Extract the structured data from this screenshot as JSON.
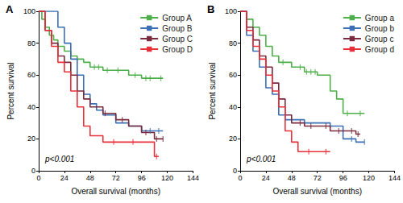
{
  "chart_data": [
    {
      "type": "line",
      "title": "A",
      "x_label": "Overall survival (months)",
      "y_label": "Percent survival",
      "annotation": "p<0.001",
      "xlim": [
        0,
        144
      ],
      "xticks": [
        0,
        24,
        48,
        72,
        96,
        120,
        144
      ],
      "ylim": [
        0,
        100
      ],
      "yticks": [
        0,
        20,
        40,
        60,
        80,
        100
      ],
      "grid": false,
      "legend": "upper right",
      "line_style": "step",
      "marker": "tick",
      "series": [
        {
          "name": "Group A",
          "color": "#4daf4a",
          "x": [
            0,
            3,
            6,
            10,
            14,
            18,
            24,
            30,
            36,
            42,
            48,
            60,
            84,
            96,
            116
          ],
          "values": [
            100,
            95,
            90,
            85,
            82,
            78,
            75,
            72,
            70,
            68,
            65,
            63,
            60,
            58,
            58
          ],
          "censored": [
            [
              52,
              65
            ],
            [
              56,
              65
            ],
            [
              64,
              63
            ],
            [
              74,
              63
            ],
            [
              90,
              60
            ],
            [
              100,
              58
            ],
            [
              104,
              58
            ],
            [
              114,
              58
            ]
          ]
        },
        {
          "name": "Group B",
          "color": "#3b6fb6",
          "x": [
            0,
            18,
            24,
            30,
            36,
            42,
            48,
            54,
            60,
            72,
            84,
            96,
            116
          ],
          "values": [
            100,
            90,
            80,
            70,
            60,
            48,
            42,
            38,
            35,
            30,
            28,
            25,
            25
          ],
          "censored": [
            [
              104,
              25
            ],
            [
              112,
              25
            ]
          ]
        },
        {
          "name": "Group C",
          "color": "#7a2a3c",
          "x": [
            0,
            6,
            12,
            18,
            24,
            30,
            36,
            42,
            48,
            60,
            72,
            84,
            96,
            108,
            116
          ],
          "values": [
            100,
            88,
            80,
            72,
            68,
            60,
            50,
            45,
            40,
            36,
            32,
            28,
            24,
            20,
            20
          ],
          "censored": [
            [
              62,
              36
            ],
            [
              78,
              32
            ],
            [
              100,
              24
            ],
            [
              110,
              20
            ],
            [
              116,
              20
            ]
          ]
        },
        {
          "name": "Group D",
          "color": "#e8303a",
          "x": [
            0,
            6,
            12,
            18,
            24,
            30,
            36,
            42,
            48,
            60,
            108,
            112
          ],
          "values": [
            100,
            88,
            78,
            68,
            62,
            50,
            40,
            28,
            22,
            18,
            9,
            9
          ],
          "censored": [
            [
              70,
              18
            ],
            [
              88,
              18
            ],
            [
              110,
              9
            ]
          ]
        }
      ]
    },
    {
      "type": "line",
      "title": "B",
      "x_label": "Overall survival (months)",
      "y_label": "Percent survival",
      "annotation": "p<0.001",
      "xlim": [
        0,
        144
      ],
      "xticks": [
        0,
        24,
        48,
        72,
        96,
        120,
        144
      ],
      "ylim": [
        0,
        100
      ],
      "yticks": [
        0,
        20,
        40,
        60,
        80,
        100
      ],
      "grid": false,
      "legend": "upper right",
      "line_style": "step",
      "marker": "tick",
      "series": [
        {
          "name": "Group a",
          "color": "#4daf4a",
          "x": [
            0,
            6,
            12,
            18,
            24,
            30,
            36,
            48,
            60,
            72,
            84,
            90,
            96,
            116
          ],
          "values": [
            100,
            95,
            90,
            85,
            78,
            72,
            68,
            65,
            62,
            60,
            50,
            45,
            36,
            36
          ],
          "censored": [
            [
              40,
              68
            ],
            [
              56,
              65
            ],
            [
              62,
              62
            ],
            [
              66,
              62
            ],
            [
              70,
              62
            ],
            [
              100,
              36
            ],
            [
              112,
              36
            ]
          ]
        },
        {
          "name": "Group b",
          "color": "#3b6fb6",
          "x": [
            0,
            6,
            12,
            18,
            24,
            30,
            36,
            42,
            60,
            84,
            96,
            108,
            116
          ],
          "values": [
            100,
            85,
            75,
            65,
            52,
            48,
            35,
            32,
            30,
            28,
            20,
            18,
            18
          ],
          "censored": [
            [
              104,
              20
            ],
            [
              116,
              18
            ]
          ]
        },
        {
          "name": "Group c",
          "color": "#7a2a3c",
          "x": [
            0,
            6,
            12,
            18,
            24,
            30,
            36,
            42,
            48,
            60,
            84,
            108,
            112
          ],
          "values": [
            100,
            90,
            82,
            72,
            65,
            55,
            45,
            35,
            30,
            28,
            25,
            23,
            23
          ],
          "censored": [
            [
              56,
              30
            ],
            [
              66,
              28
            ],
            [
              80,
              28
            ],
            [
              92,
              25
            ],
            [
              104,
              25
            ],
            [
              110,
              23
            ]
          ]
        },
        {
          "name": "Group d",
          "color": "#e8303a",
          "x": [
            0,
            6,
            12,
            18,
            24,
            30,
            36,
            42,
            48,
            54,
            84
          ],
          "values": [
            100,
            88,
            78,
            70,
            60,
            50,
            40,
            25,
            18,
            12,
            12
          ],
          "censored": [
            [
              64,
              12
            ],
            [
              80,
              12
            ]
          ]
        }
      ]
    }
  ]
}
